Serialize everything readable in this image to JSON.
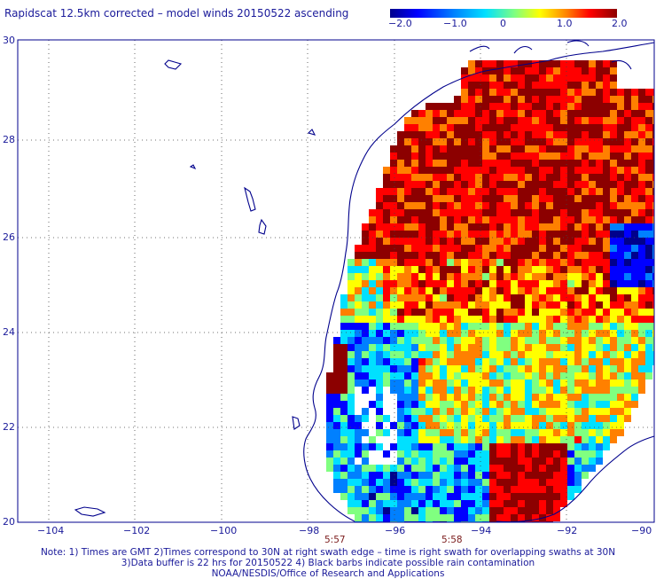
{
  "title": "Rapidscat 12.5km corrected – model winds 20150522 ascending",
  "colorbar": {
    "ticks": [
      "−2.0",
      "−1.0",
      "0",
      "1.0",
      "2.0"
    ],
    "colors": [
      "#00008c",
      "#0000ff",
      "#0080ff",
      "#00e0ff",
      "#80ff80",
      "#ffff00",
      "#ff8000",
      "#ff0000",
      "#8c0000"
    ]
  },
  "map": {
    "lat_labels": [
      "30",
      "28",
      "26",
      "24",
      "22",
      "20"
    ],
    "lon_labels": [
      "−104",
      "−102",
      "−100",
      "−98",
      "−96",
      "−94",
      "−92",
      "−90"
    ],
    "pass_times": [
      "5:57",
      "5:58"
    ],
    "land_outline_color": "#00008c",
    "grid_color": "#444444"
  },
  "notes": [
    "Note: 1) Times are GMT 2)Times correspond to 30N at right swath edge – time is right swath for overlapping swaths at 30N",
    "3)Data buffer is 22 hrs for 20150522 4) Black barbs indicate possible rain contamination",
    "NOAA/NESDIS/Office of Research and Applications"
  ]
}
